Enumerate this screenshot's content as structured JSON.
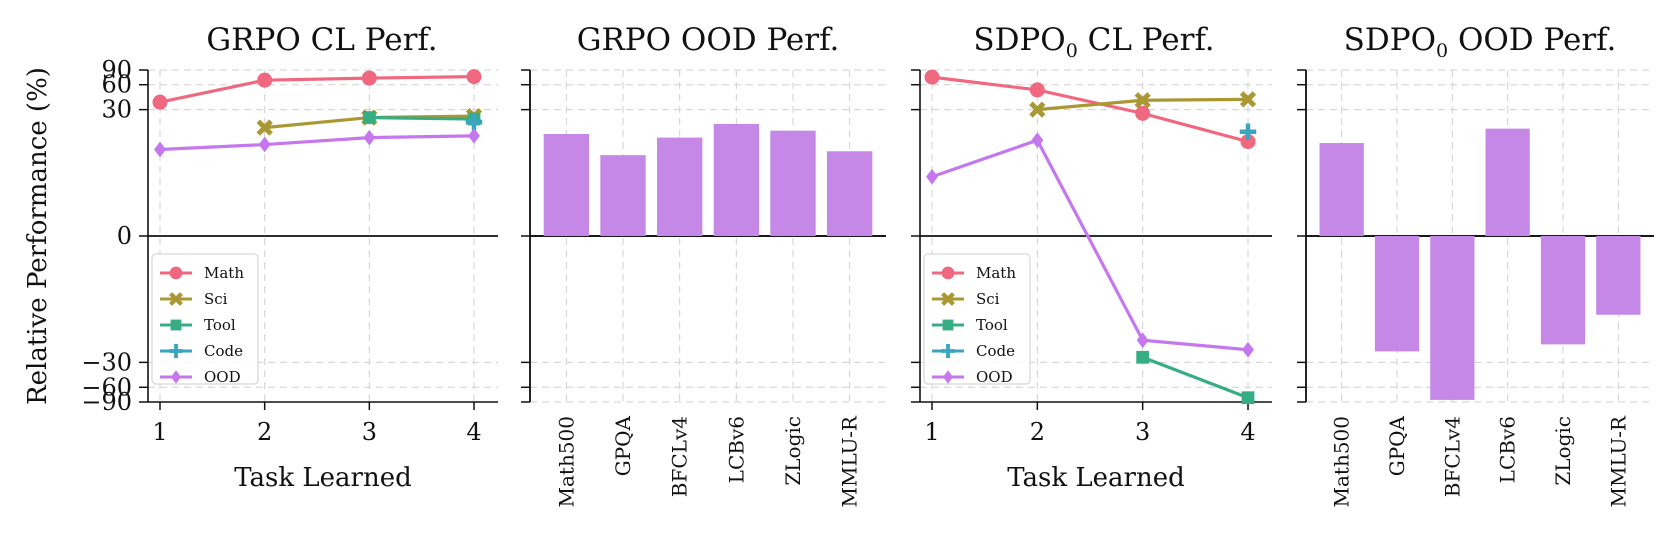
{
  "ylabel": "Relative Performance (%)",
  "series_colors": {
    "Math": "#f0687f",
    "Sci": "#a99833",
    "Tool": "#36ad83",
    "Code": "#39a5c0",
    "OOD": "#c577ee"
  },
  "bar_color": "#c588e6",
  "chart_data": [
    {
      "type": "line",
      "title": "GRPO CL Perf.",
      "xlabel": "Task Learned",
      "ylabel": "Relative Performance (%)",
      "x": [
        1,
        2,
        3,
        4
      ],
      "yscale": "symlog",
      "yticks": [
        -90,
        -60,
        -30,
        0,
        30,
        60,
        90
      ],
      "ylim": [
        -90,
        90
      ],
      "legend": "lower-left",
      "grid": true,
      "series": [
        {
          "name": "Math",
          "marker": "circle",
          "x": [
            1,
            2,
            3,
            4
          ],
          "y": [
            37,
            68,
            72,
            75
          ]
        },
        {
          "name": "Sci",
          "marker": "x",
          "x": [
            2,
            3,
            4
          ],
          "y": [
            18,
            24,
            25
          ]
        },
        {
          "name": "Tool",
          "marker": "square",
          "x": [
            3,
            4
          ],
          "y": [
            24,
            23
          ]
        },
        {
          "name": "Code",
          "marker": "plus",
          "x": [
            4
          ],
          "y": [
            21
          ]
        },
        {
          "name": "OOD",
          "marker": "diamond",
          "x": [
            1,
            2,
            3,
            4
          ],
          "y": [
            9.5,
            11,
            13.5,
            14.2
          ]
        }
      ]
    },
    {
      "type": "bar",
      "title": "GRPO OOD Perf.",
      "categories": [
        "Math500",
        "GPQA",
        "BFCLv4",
        "LCBv6",
        "ZLogic",
        "MMLU-R"
      ],
      "values": [
        15,
        8,
        13.5,
        20,
        16.5,
        9
      ],
      "yscale": "symlog",
      "ylim": [
        -90,
        90
      ],
      "grid": true
    },
    {
      "type": "line",
      "title": "SDPO",
      "title_subscript": "0",
      "title_suffix": " CL Perf.",
      "xlabel": "Task Learned",
      "x": [
        1,
        2,
        3,
        4
      ],
      "yscale": "symlog",
      "ylim": [
        -90,
        90
      ],
      "legend": "lower-left",
      "grid": true,
      "series": [
        {
          "name": "Math",
          "marker": "circle",
          "x": [
            1,
            2,
            3,
            4
          ],
          "y": [
            74,
            52,
            27,
            12
          ]
        },
        {
          "name": "Sci",
          "marker": "x",
          "x": [
            2,
            3,
            4
          ],
          "y": [
            30,
            39,
            40
          ]
        },
        {
          "name": "Tool",
          "marker": "square",
          "x": [
            3,
            4
          ],
          "y": [
            -26,
            -80
          ]
        },
        {
          "name": "Code",
          "marker": "plus",
          "x": [
            4
          ],
          "y": [
            16
          ]
        },
        {
          "name": "OOD",
          "marker": "diamond",
          "x": [
            1,
            2,
            3,
            4
          ],
          "y": [
            4,
            12.5,
            -16,
            -21
          ]
        }
      ]
    },
    {
      "type": "bar",
      "title": "SDPO",
      "title_subscript": "0",
      "title_suffix": " OOD Perf.",
      "categories": [
        "Math500",
        "GPQA",
        "BFCLv4",
        "LCBv6",
        "ZLogic",
        "MMLU-R"
      ],
      "values": [
        11.5,
        -22,
        -85,
        17.5,
        -18,
        -7.5
      ],
      "yscale": "symlog",
      "ylim": [
        -90,
        90
      ],
      "grid": true
    }
  ]
}
